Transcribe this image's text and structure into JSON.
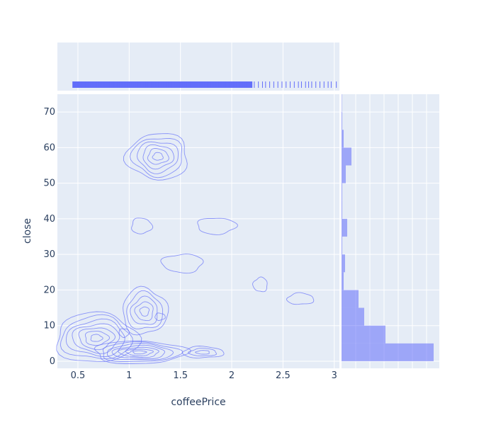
{
  "chart_data": {
    "type": "scatter",
    "subtype": "density-contour-with-marginals",
    "xlabel": "coffeePrice",
    "ylabel": "close",
    "xlim": [
      0.3,
      3.05
    ],
    "ylim": [
      -2,
      75
    ],
    "x_ticks": [
      0.5,
      1,
      1.5,
      2,
      2.5,
      3
    ],
    "x_tick_labels": [
      "0.5",
      "1",
      "1.5",
      "2",
      "2.5",
      "3"
    ],
    "y_ticks": [
      0,
      10,
      20,
      30,
      40,
      50,
      60,
      70
    ],
    "y_tick_labels": [
      "0",
      "10",
      "20",
      "30",
      "40",
      "50",
      "60",
      "70"
    ],
    "grid": true,
    "colors": {
      "series": "#636efa",
      "plot_bg": "#e5ecf6",
      "grid": "#ffffff",
      "text": "#2a3f5f"
    },
    "contour_clusters": [
      {
        "cx": 0.68,
        "cy": 6.5,
        "rx": 0.4,
        "ry": 7,
        "levels": 7
      },
      {
        "cx": 1.1,
        "cy": 2.5,
        "rx": 0.45,
        "ry": 3.2,
        "levels": 7
      },
      {
        "cx": 1.15,
        "cy": 14,
        "rx": 0.22,
        "ry": 6.5,
        "levels": 5
      },
      {
        "cx": 1.72,
        "cy": 2.5,
        "rx": 0.2,
        "ry": 1.6,
        "levels": 3
      },
      {
        "cx": 1.28,
        "cy": 57.5,
        "rx": 0.3,
        "ry": 6.5,
        "levels": 6
      },
      {
        "cx": 1.12,
        "cy": 38,
        "rx": 0.1,
        "ry": 2.2,
        "levels": 1
      },
      {
        "cx": 1.85,
        "cy": 38,
        "rx": 0.19,
        "ry": 2.3,
        "levels": 1
      },
      {
        "cx": 1.52,
        "cy": 27.5,
        "rx": 0.2,
        "ry": 2.6,
        "levels": 1
      },
      {
        "cx": 2.28,
        "cy": 21.5,
        "rx": 0.07,
        "ry": 2,
        "levels": 1
      },
      {
        "cx": 2.67,
        "cy": 17.5,
        "rx": 0.13,
        "ry": 1.6,
        "levels": 1
      },
      {
        "cx": 1.3,
        "cy": 12.5,
        "rx": 0.05,
        "ry": 1,
        "levels": 1
      },
      {
        "cx": 0.95,
        "cy": 8,
        "rx": 0.05,
        "ry": 1.2,
        "levels": 1
      }
    ],
    "histogram_y": {
      "bin_size": 5,
      "bins": [
        {
          "start": 0,
          "end": 5,
          "count": 130
        },
        {
          "start": 5,
          "end": 10,
          "count": 62
        },
        {
          "start": 10,
          "end": 15,
          "count": 32
        },
        {
          "start": 15,
          "end": 20,
          "count": 24
        },
        {
          "start": 20,
          "end": 25,
          "count": 3
        },
        {
          "start": 25,
          "end": 30,
          "count": 5
        },
        {
          "start": 30,
          "end": 35,
          "count": 1
        },
        {
          "start": 35,
          "end": 40,
          "count": 8
        },
        {
          "start": 40,
          "end": 45,
          "count": 1
        },
        {
          "start": 45,
          "end": 50,
          "count": 1
        },
        {
          "start": 50,
          "end": 55,
          "count": 6
        },
        {
          "start": 55,
          "end": 60,
          "count": 14
        },
        {
          "start": 60,
          "end": 65,
          "count": 3
        },
        {
          "start": 65,
          "end": 70,
          "count": 1
        },
        {
          "start": 70,
          "end": 75,
          "count": 0
        }
      ]
    },
    "rug_x": {
      "dense_range": [
        0.45,
        2.2
      ],
      "sparse_values": [
        2.22,
        2.26,
        2.3,
        2.33,
        2.37,
        2.41,
        2.45,
        2.49,
        2.53,
        2.57,
        2.61,
        2.65,
        2.68,
        2.72,
        2.75,
        2.78,
        2.82,
        2.86,
        2.9,
        2.94,
        2.97,
        3.02
      ]
    }
  }
}
